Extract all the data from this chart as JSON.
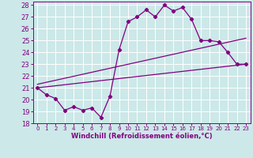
{
  "xlabel": "Windchill (Refroidissement éolien,°C)",
  "bg_color": "#cce8e8",
  "line_color": "#800080",
  "xlim": [
    -0.5,
    23.5
  ],
  "ylim": [
    18,
    28.3
  ],
  "xticks": [
    0,
    1,
    2,
    3,
    4,
    5,
    6,
    7,
    8,
    9,
    10,
    11,
    12,
    13,
    14,
    15,
    16,
    17,
    18,
    19,
    20,
    21,
    22,
    23
  ],
  "yticks": [
    18,
    19,
    20,
    21,
    22,
    23,
    24,
    25,
    26,
    27,
    28
  ],
  "main_line_x": [
    0,
    1,
    2,
    3,
    4,
    5,
    6,
    7,
    8,
    9,
    10,
    11,
    12,
    13,
    14,
    15,
    16,
    17,
    18,
    19,
    20,
    21,
    22,
    23
  ],
  "main_line_y": [
    21.0,
    20.4,
    20.1,
    19.1,
    19.4,
    19.1,
    19.3,
    18.5,
    20.3,
    24.2,
    26.6,
    27.0,
    27.6,
    27.0,
    28.0,
    27.5,
    27.8,
    26.8,
    25.0,
    25.0,
    24.9,
    24.0,
    23.0,
    23.0
  ],
  "line2_x": [
    0,
    23
  ],
  "line2_y": [
    21.0,
    23.0
  ],
  "line3_x": [
    0,
    23
  ],
  "line3_y": [
    21.3,
    25.2
  ]
}
